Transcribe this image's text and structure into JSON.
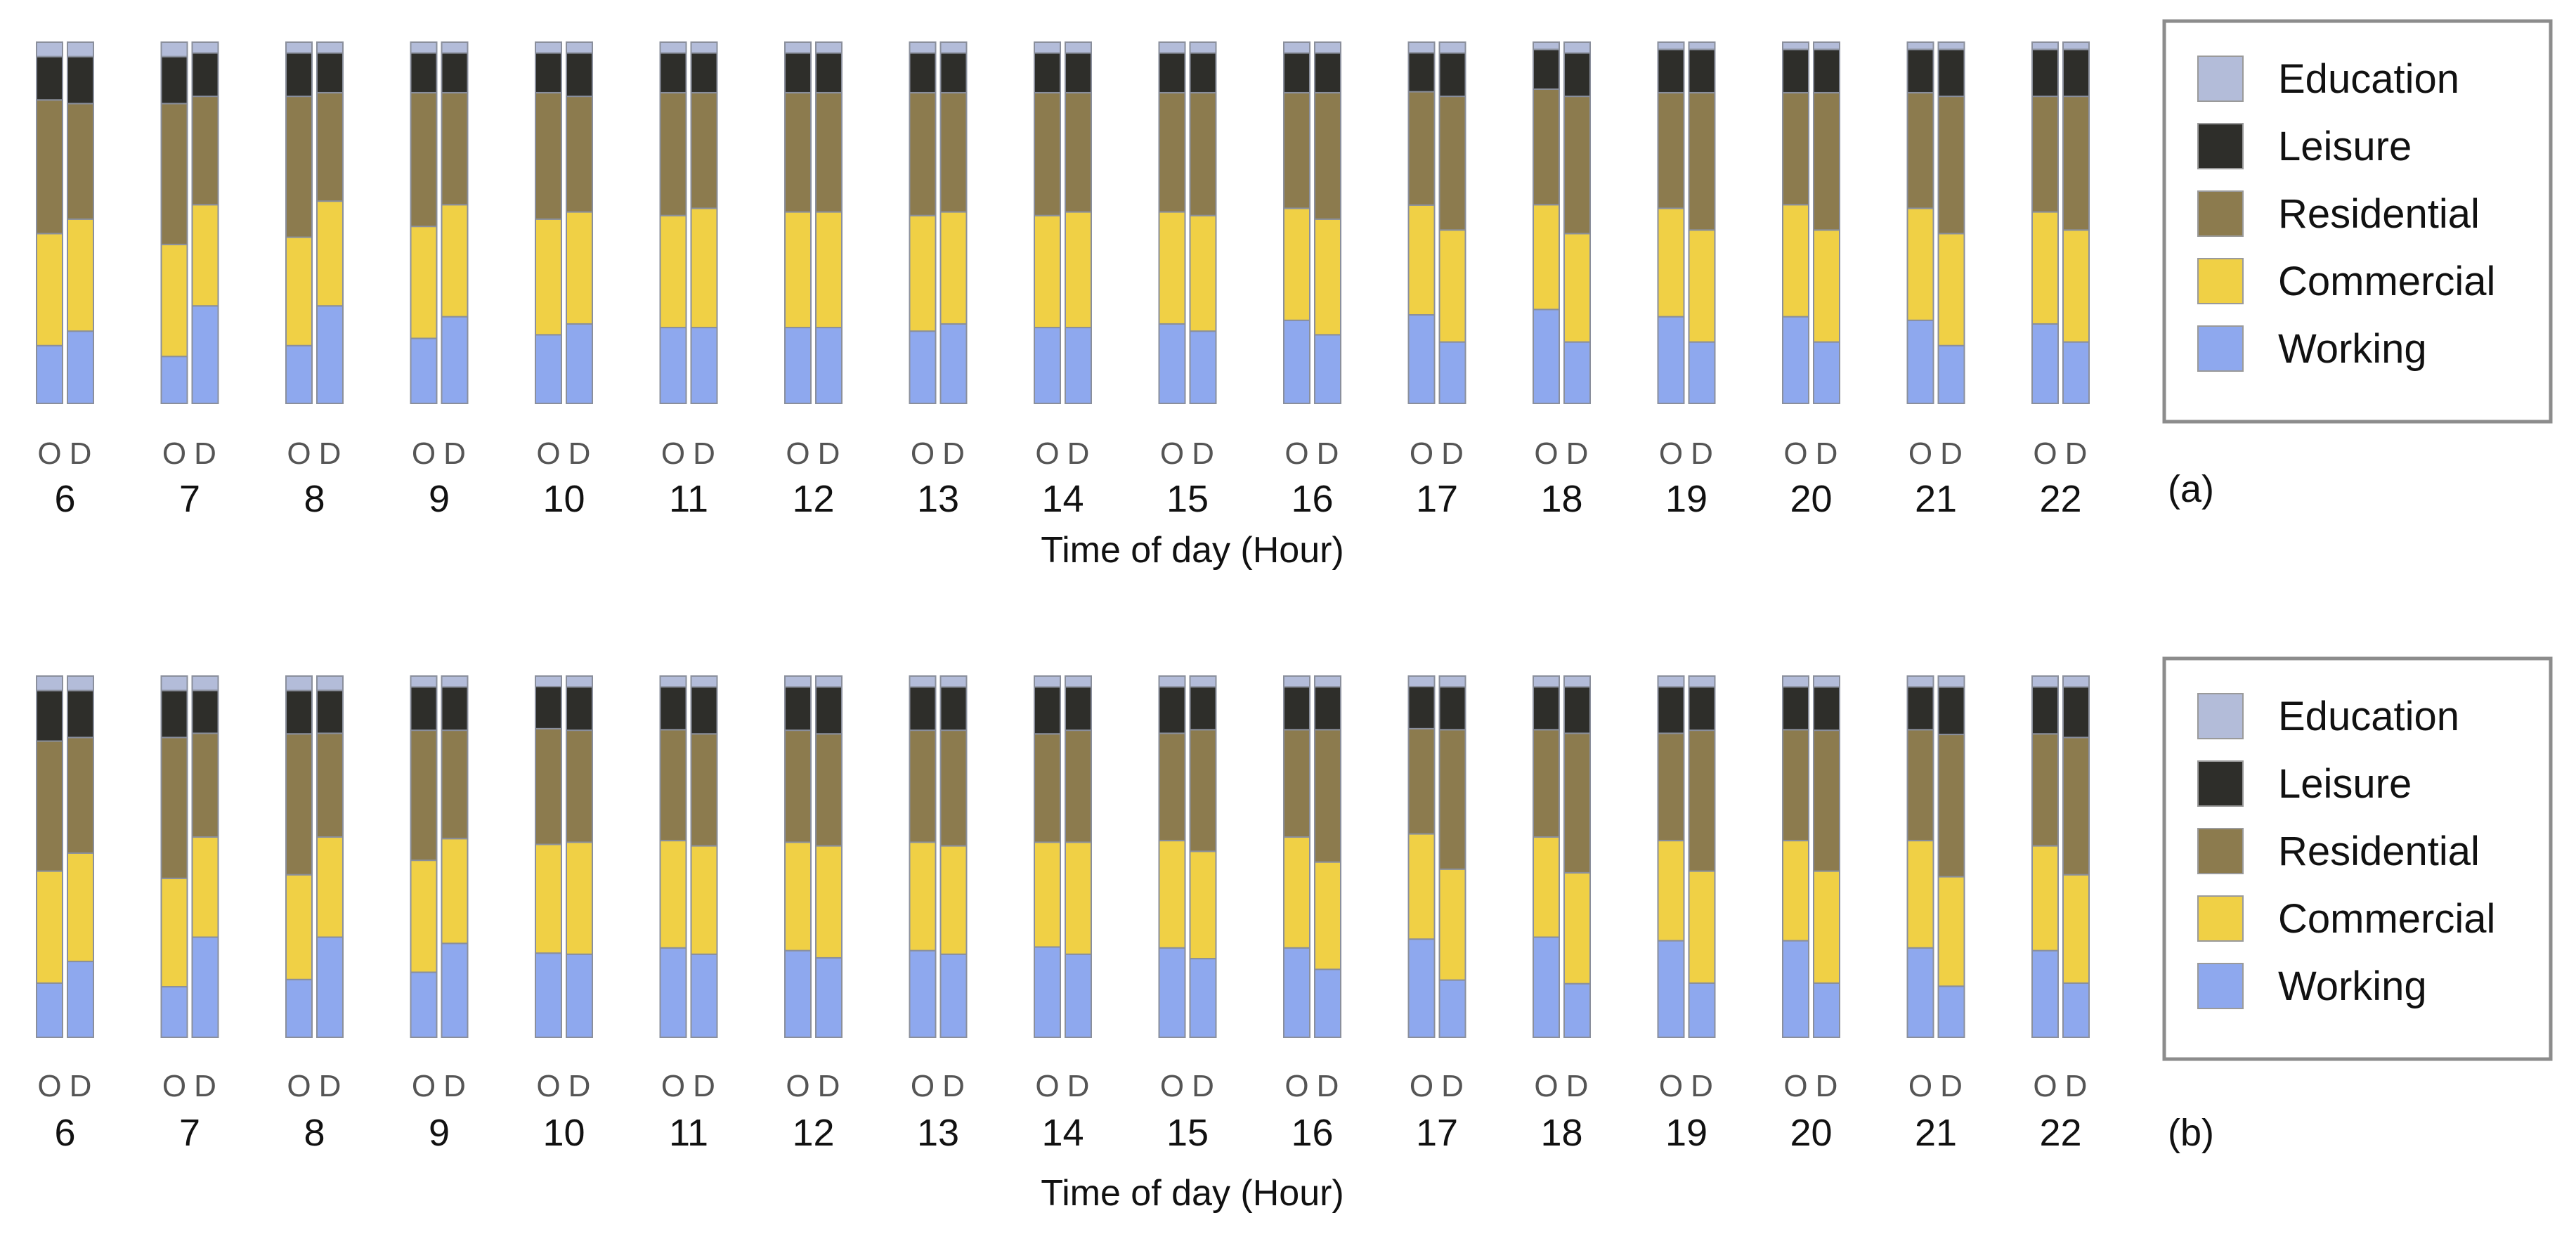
{
  "colors": {
    "Education": "#b3bcd9",
    "Leisure": "#2e2e2a",
    "Residential": "#8c7b4e",
    "Commercial": "#f0d045",
    "Working": "#8ea8ee"
  },
  "chart_data": [
    {
      "type": "bar",
      "subtype": "stacked-100-percent-paired",
      "panel_label": "(a)",
      "xlabel": "Time of day (Hour)",
      "categories": [
        "6",
        "7",
        "8",
        "9",
        "10",
        "11",
        "12",
        "13",
        "14",
        "15",
        "16",
        "17",
        "18",
        "19",
        "20",
        "21",
        "22"
      ],
      "pair_labels": [
        "O",
        "D"
      ],
      "stack_order": [
        "Working",
        "Commercial",
        "Residential",
        "Leisure",
        "Education"
      ],
      "legend": [
        "Education",
        "Leisure",
        "Residential",
        "Commercial",
        "Working"
      ],
      "legend_position": "right",
      "ylim": [
        0,
        100
      ],
      "series": [
        {
          "name": "Working",
          "O": [
            16,
            13,
            16,
            18,
            19,
            21,
            21,
            20,
            21,
            22,
            23,
            25,
            26,
            24,
            24,
            23,
            22
          ],
          "D": [
            20,
            27,
            27,
            24,
            22,
            21,
            21,
            22,
            21,
            20,
            19,
            17,
            17,
            17,
            17,
            16,
            17
          ]
        },
        {
          "name": "Commercial",
          "O": [
            31,
            31,
            30,
            31,
            32,
            31,
            32,
            32,
            31,
            31,
            31,
            31,
            29,
            30,
            31,
            31,
            31
          ],
          "D": [
            31,
            28,
            29,
            31,
            31,
            33,
            32,
            31,
            32,
            32,
            32,
            31,
            30,
            31,
            31,
            31,
            31
          ]
        },
        {
          "name": "Residential",
          "O": [
            37,
            39,
            39,
            37,
            35,
            34,
            33,
            34,
            34,
            33,
            32,
            32,
            32,
            32,
            31,
            32,
            32
          ],
          "D": [
            32,
            30,
            30,
            31,
            32,
            32,
            33,
            33,
            33,
            34,
            35,
            37,
            38,
            38,
            38,
            38,
            37
          ]
        },
        {
          "name": "Leisure",
          "O": [
            12,
            13,
            12,
            11,
            11,
            11,
            11,
            11,
            11,
            11,
            11,
            11,
            11,
            12,
            12,
            12,
            13
          ],
          "D": [
            13,
            12,
            11,
            11,
            12,
            11,
            11,
            11,
            11,
            11,
            11,
            12,
            12,
            12,
            12,
            13,
            13
          ]
        },
        {
          "name": "Education",
          "O": [
            4,
            4,
            3,
            3,
            3,
            3,
            3,
            3,
            3,
            3,
            3,
            3,
            2,
            2,
            2,
            2,
            2
          ],
          "D": [
            4,
            3,
            3,
            3,
            3,
            3,
            3,
            3,
            3,
            3,
            3,
            3,
            3,
            2,
            2,
            2,
            2
          ]
        }
      ]
    },
    {
      "type": "bar",
      "subtype": "stacked-100-percent-paired",
      "panel_label": "(b)",
      "xlabel": "Time of day (Hour)",
      "categories": [
        "6",
        "7",
        "8",
        "9",
        "10",
        "11",
        "12",
        "13",
        "14",
        "15",
        "16",
        "17",
        "18",
        "19",
        "20",
        "21",
        "22"
      ],
      "pair_labels": [
        "O",
        "D"
      ],
      "stack_order": [
        "Working",
        "Commercial",
        "Residential",
        "Leisure",
        "Education"
      ],
      "legend": [
        "Education",
        "Leisure",
        "Residential",
        "Commercial",
        "Working"
      ],
      "legend_position": "right",
      "ylim": [
        0,
        100
      ],
      "series": [
        {
          "name": "Working",
          "O": [
            15,
            14,
            16,
            18,
            24,
            25,
            24,
            24,
            25,
            25,
            25,
            28,
            28,
            27,
            27,
            25,
            24
          ],
          "D": [
            21,
            28,
            28,
            26,
            23,
            23,
            22,
            23,
            23,
            22,
            19,
            16,
            15,
            15,
            15,
            14,
            15
          ]
        },
        {
          "name": "Commercial",
          "O": [
            31,
            30,
            29,
            31,
            31,
            30,
            30,
            30,
            29,
            30,
            31,
            30,
            28,
            28,
            28,
            30,
            29
          ],
          "D": [
            30,
            28,
            28,
            29,
            31,
            30,
            31,
            30,
            31,
            30,
            30,
            31,
            31,
            31,
            31,
            30,
            30
          ]
        },
        {
          "name": "Residential",
          "O": [
            36,
            39,
            39,
            36,
            33,
            31,
            31,
            31,
            30,
            30,
            30,
            30,
            30,
            30,
            31,
            31,
            31
          ],
          "D": [
            32,
            29,
            29,
            30,
            31,
            31,
            31,
            32,
            31,
            34,
            37,
            39,
            39,
            39,
            39,
            39,
            38
          ]
        },
        {
          "name": "Leisure",
          "O": [
            14,
            13,
            12,
            12,
            12,
            12,
            12,
            12,
            13,
            13,
            12,
            12,
            12,
            13,
            12,
            12,
            13
          ],
          "D": [
            13,
            12,
            12,
            12,
            12,
            13,
            13,
            12,
            12,
            12,
            12,
            12,
            13,
            12,
            12,
            13,
            14
          ]
        },
        {
          "name": "Education",
          "O": [
            4,
            4,
            4,
            3,
            3,
            3,
            3,
            3,
            3,
            3,
            3,
            3,
            3,
            3,
            3,
            3,
            3
          ],
          "D": [
            4,
            4,
            4,
            3,
            3,
            3,
            3,
            3,
            3,
            3,
            3,
            3,
            3,
            3,
            3,
            3,
            3
          ]
        }
      ]
    }
  ]
}
